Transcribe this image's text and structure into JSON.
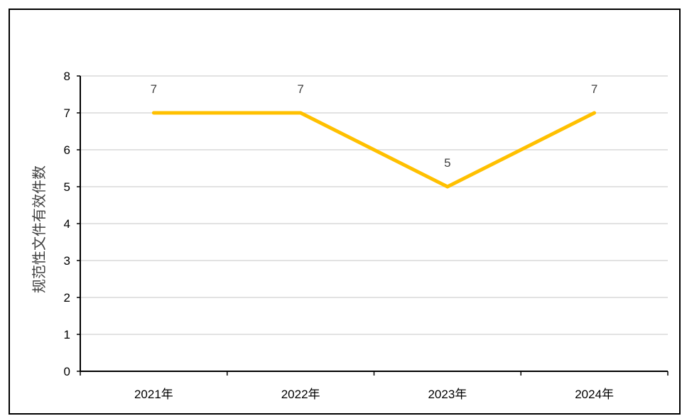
{
  "chart_data": {
    "type": "line",
    "title": "",
    "xlabel": "",
    "ylabel": "规范性文件有效件数",
    "categories": [
      "2021年",
      "2022年",
      "2023年",
      "2024年"
    ],
    "series": [
      {
        "values": [
          7,
          7,
          5,
          7
        ],
        "color": "#FFC000",
        "data_labels": [
          "7",
          "7",
          "5",
          "7"
        ]
      }
    ],
    "ylim": [
      0,
      8
    ],
    "yticks": [
      "0",
      "1",
      "2",
      "3",
      "4",
      "5",
      "6",
      "7",
      "8"
    ],
    "grid": true,
    "legend": "none",
    "gridline_color": "#D9D9D9",
    "axis_color": "#000000"
  }
}
